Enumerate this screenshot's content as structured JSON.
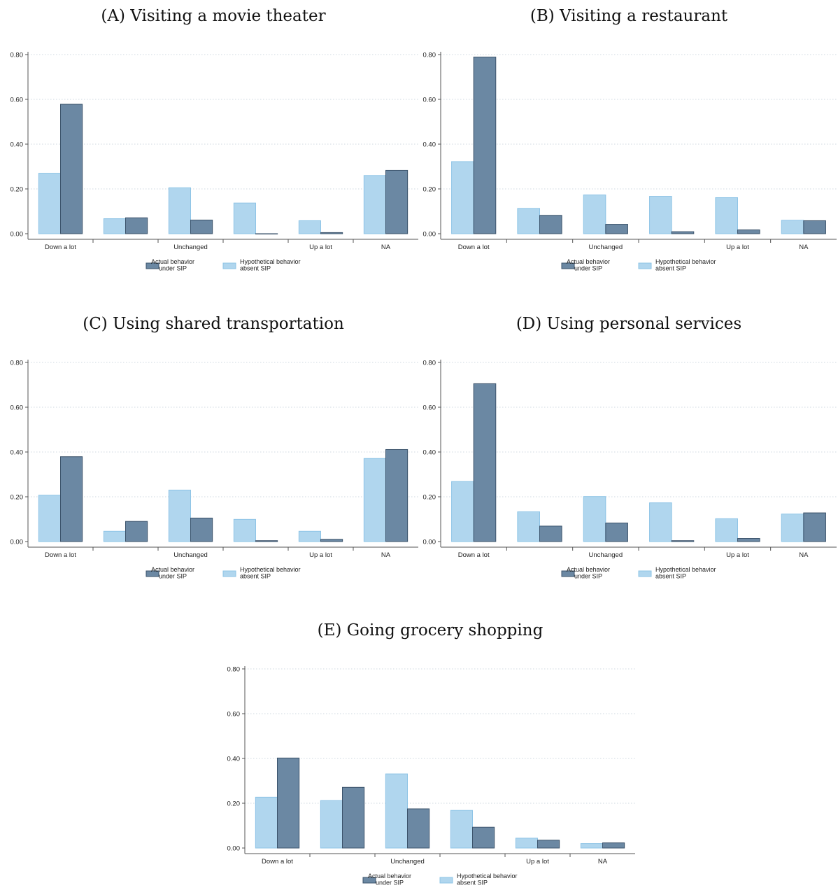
{
  "legend": {
    "actual": [
      "Actual behavior",
      "under SIP"
    ],
    "hypothetical": [
      "Hypothetical behavior",
      "absent SIP"
    ]
  },
  "colors": {
    "actual": "#6b88a3",
    "actual_stroke": "#3b536b",
    "hypothetical": "#b0d6ee",
    "hypothetical_stroke": "#8ec4e6",
    "grid": "#cfd8e0",
    "axis": "#555555"
  },
  "chart_data": [
    {
      "type": "bar",
      "title": "(A) Visiting a movie theater",
      "categories": [
        "Down a lot",
        "",
        "Unchanged",
        "",
        "Up a lot",
        "NA"
      ],
      "yticks": [
        "0.00",
        "0.20",
        "0.40",
        "0.60",
        "0.80"
      ],
      "ylim": [
        0,
        0.8
      ],
      "grid": true,
      "legend_position": "bottom",
      "series": [
        {
          "name": "Hypothetical behavior absent SIP",
          "values": [
            0.27,
            0.067,
            0.205,
            0.137,
            0.058,
            0.26
          ]
        },
        {
          "name": "Actual behavior under SIP",
          "values": [
            0.578,
            0.071,
            0.061,
            0.0,
            0.005,
            0.283
          ]
        }
      ]
    },
    {
      "type": "bar",
      "title": "(B) Visiting a restaurant",
      "categories": [
        "Down a lot",
        "",
        "Unchanged",
        "",
        "Up a lot",
        "NA"
      ],
      "yticks": [
        "0.00",
        "0.20",
        "0.40",
        "0.60",
        "0.80"
      ],
      "ylim": [
        0,
        0.8
      ],
      "grid": true,
      "legend_position": "bottom",
      "series": [
        {
          "name": "Hypothetical behavior absent SIP",
          "values": [
            0.322,
            0.113,
            0.173,
            0.167,
            0.161,
            0.06
          ]
        },
        {
          "name": "Actual behavior under SIP",
          "values": [
            0.789,
            0.082,
            0.042,
            0.009,
            0.017,
            0.058
          ]
        }
      ]
    },
    {
      "type": "bar",
      "title": "(C) Using shared transportation",
      "categories": [
        "Down a lot",
        "",
        "Unchanged",
        "",
        "Up a lot",
        "NA"
      ],
      "yticks": [
        "0.00",
        "0.20",
        "0.40",
        "0.60",
        "0.80"
      ],
      "ylim": [
        0,
        0.8
      ],
      "grid": true,
      "legend_position": "bottom",
      "series": [
        {
          "name": "Hypothetical behavior absent SIP",
          "values": [
            0.207,
            0.046,
            0.23,
            0.099,
            0.046,
            0.371
          ]
        },
        {
          "name": "Actual behavior under SIP",
          "values": [
            0.379,
            0.09,
            0.105,
            0.004,
            0.01,
            0.411
          ]
        }
      ]
    },
    {
      "type": "bar",
      "title": "(D) Using personal services",
      "categories": [
        "Down a lot",
        "",
        "Unchanged",
        "",
        "Up a lot",
        "NA"
      ],
      "yticks": [
        "0.00",
        "0.20",
        "0.40",
        "0.60",
        "0.80"
      ],
      "ylim": [
        0,
        0.8
      ],
      "grid": true,
      "legend_position": "bottom",
      "series": [
        {
          "name": "Hypothetical behavior absent SIP",
          "values": [
            0.268,
            0.133,
            0.201,
            0.173,
            0.102,
            0.123
          ]
        },
        {
          "name": "Actual behavior under SIP",
          "values": [
            0.705,
            0.069,
            0.083,
            0.004,
            0.014,
            0.128
          ]
        }
      ]
    },
    {
      "type": "bar",
      "title": "(E) Going grocery shopping",
      "categories": [
        "Down a lot",
        "",
        "Unchanged",
        "",
        "Up a lot",
        "NA"
      ],
      "yticks": [
        "0.00",
        "0.20",
        "0.40",
        "0.60",
        "0.80"
      ],
      "ylim": [
        0,
        0.8
      ],
      "grid": true,
      "legend_position": "bottom",
      "series": [
        {
          "name": "Hypothetical behavior absent SIP",
          "values": [
            0.227,
            0.212,
            0.331,
            0.168,
            0.044,
            0.02
          ]
        },
        {
          "name": "Actual behavior under SIP",
          "values": [
            0.402,
            0.271,
            0.175,
            0.093,
            0.035,
            0.023
          ]
        }
      ]
    }
  ]
}
